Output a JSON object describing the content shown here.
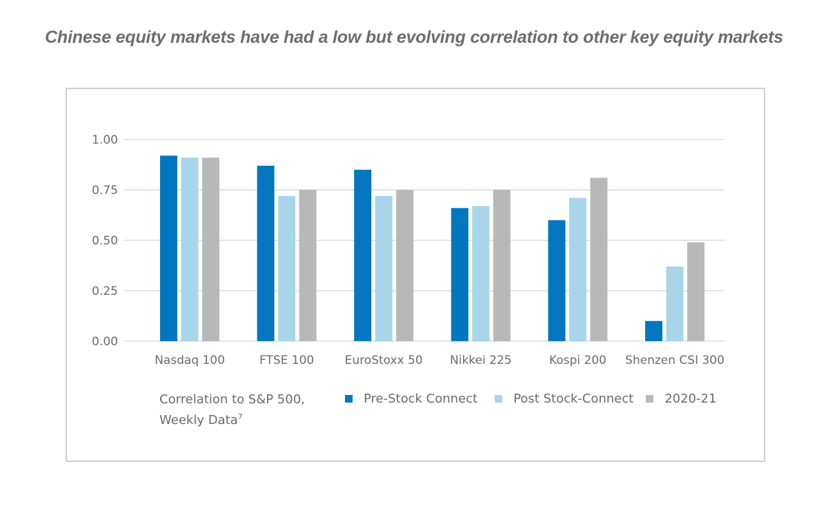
{
  "headline": "Chinese equity markets have had a low but evolving correlation to other key equity markets",
  "note": {
    "line1": "Correlation to S&P 500,",
    "line2": "Weekly Data",
    "footnote": "7"
  },
  "colors": {
    "pre": "#0077be",
    "post": "#a8d5ea",
    "recent": "#b8b8b8",
    "grid": "#dcdcdc"
  },
  "chart_data": {
    "type": "bar",
    "title": "Chinese equity markets have had a low but evolving correlation to other key equity markets",
    "categories": [
      "Nasdaq 100",
      "FTSE 100",
      "EuroStoxx 50",
      "Nikkei 225",
      "Kospi 200",
      "Shenzen CSI 300"
    ],
    "series": [
      {
        "name": "Pre-Stock Connect",
        "values": [
          0.92,
          0.87,
          0.85,
          0.66,
          0.6,
          0.1
        ]
      },
      {
        "name": "Post Stock-Connect",
        "values": [
          0.91,
          0.72,
          0.72,
          0.67,
          0.71,
          0.37
        ]
      },
      {
        "name": "2020-21",
        "values": [
          0.91,
          0.75,
          0.75,
          0.75,
          0.81,
          0.49
        ]
      }
    ],
    "ylim": [
      0,
      1
    ],
    "yticks": [
      "1.00",
      "0.75",
      "0.50",
      "0.25",
      "0.00"
    ],
    "ytick_values": [
      1.0,
      0.75,
      0.5,
      0.25,
      0.0
    ],
    "grid": true,
    "legend_position": "bottom"
  }
}
